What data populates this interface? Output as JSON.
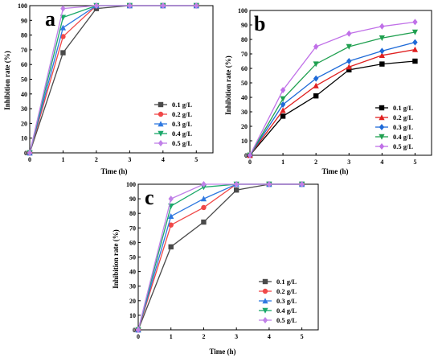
{
  "chart_data": [
    {
      "type": "line",
      "panel_label": "a",
      "xlabel": "Time (h)",
      "ylabel": "Inhibition rate (%)",
      "x": [
        0,
        1,
        2,
        3,
        4,
        5
      ],
      "xlim": [
        0,
        5.5
      ],
      "ylim": [
        0,
        100
      ],
      "xticks": [
        0,
        1,
        2,
        3,
        4,
        5
      ],
      "yticks": [
        0,
        10,
        20,
        30,
        40,
        50,
        60,
        70,
        80,
        90,
        100
      ],
      "grid": false,
      "legend_position": "bottom-right",
      "series": [
        {
          "name": "0.1 g/L",
          "color": "#4a4a4a",
          "marker": "square",
          "values": [
            0,
            68,
            98,
            100,
            100,
            100
          ]
        },
        {
          "name": "0.2 g/L",
          "color": "#f04848",
          "marker": "circle",
          "values": [
            0,
            79,
            100,
            100,
            100,
            100
          ]
        },
        {
          "name": "0.3 g/L",
          "color": "#2e78e0",
          "marker": "triangle-up",
          "values": [
            0,
            85,
            100,
            100,
            100,
            100
          ]
        },
        {
          "name": "0.4 g/L",
          "color": "#1aa86a",
          "marker": "triangle-down",
          "values": [
            0,
            92,
            100,
            100,
            100,
            100
          ]
        },
        {
          "name": "0.5 g/L",
          "color": "#c080e8",
          "marker": "diamond",
          "values": [
            0,
            98,
            100,
            100,
            100,
            100
          ]
        }
      ]
    },
    {
      "type": "line",
      "panel_label": "b",
      "xlabel": "Time (h)",
      "ylabel": "Inhibition rate (%)",
      "x": [
        0,
        1,
        2,
        3,
        4,
        5
      ],
      "xlim": [
        0,
        5.5
      ],
      "ylim": [
        0,
        100
      ],
      "xticks": [
        0,
        1,
        2,
        3,
        4,
        5
      ],
      "yticks": [
        0,
        10,
        20,
        30,
        40,
        50,
        60,
        70,
        80,
        90,
        100
      ],
      "grid": false,
      "legend_position": "bottom-right",
      "series": [
        {
          "name": "0.1 g/L",
          "color": "#000000",
          "marker": "square",
          "values": [
            0,
            27,
            41,
            59,
            63,
            65
          ]
        },
        {
          "name": "0.2 g/L",
          "color": "#e02020",
          "marker": "triangle-up",
          "values": [
            0,
            31,
            48,
            61,
            69,
            73
          ]
        },
        {
          "name": "0.3 g/L",
          "color": "#1e6ad8",
          "marker": "diamond",
          "values": [
            0,
            35,
            53,
            65,
            72,
            78
          ]
        },
        {
          "name": "0.4 g/L",
          "color": "#20a050",
          "marker": "triangle-down",
          "values": [
            0,
            39,
            63,
            75,
            81,
            85
          ]
        },
        {
          "name": "0.5 g/L",
          "color": "#c070e8",
          "marker": "diamond",
          "values": [
            0,
            45,
            75,
            84,
            89,
            92
          ]
        }
      ]
    },
    {
      "type": "line",
      "panel_label": "c",
      "xlabel": "Time (h)",
      "ylabel": "Inhibition rate (%)",
      "x": [
        0,
        1,
        2,
        3,
        4,
        5
      ],
      "xlim": [
        0,
        5.5
      ],
      "ylim": [
        0,
        100
      ],
      "xticks": [
        0,
        1,
        2,
        3,
        4,
        5
      ],
      "yticks": [
        0,
        10,
        20,
        30,
        40,
        50,
        60,
        70,
        80,
        90,
        100
      ],
      "grid": false,
      "legend_position": "bottom-right",
      "series": [
        {
          "name": "0.1 g/L",
          "color": "#4a4a4a",
          "marker": "square",
          "values": [
            0,
            57,
            74,
            96,
            100,
            100
          ]
        },
        {
          "name": "0.2 g/L",
          "color": "#f04848",
          "marker": "circle",
          "values": [
            0,
            72,
            84,
            100,
            100,
            100
          ]
        },
        {
          "name": "0.3 g/L",
          "color": "#2e78e0",
          "marker": "triangle-up",
          "values": [
            0,
            78,
            90,
            100,
            100,
            100
          ]
        },
        {
          "name": "0.4 g/L",
          "color": "#1aa86a",
          "marker": "triangle-down",
          "values": [
            0,
            85,
            98,
            100,
            100,
            100
          ]
        },
        {
          "name": "0.5 g/L",
          "color": "#c080e8",
          "marker": "diamond",
          "values": [
            0,
            90,
            100,
            100,
            100,
            100
          ]
        }
      ]
    }
  ]
}
